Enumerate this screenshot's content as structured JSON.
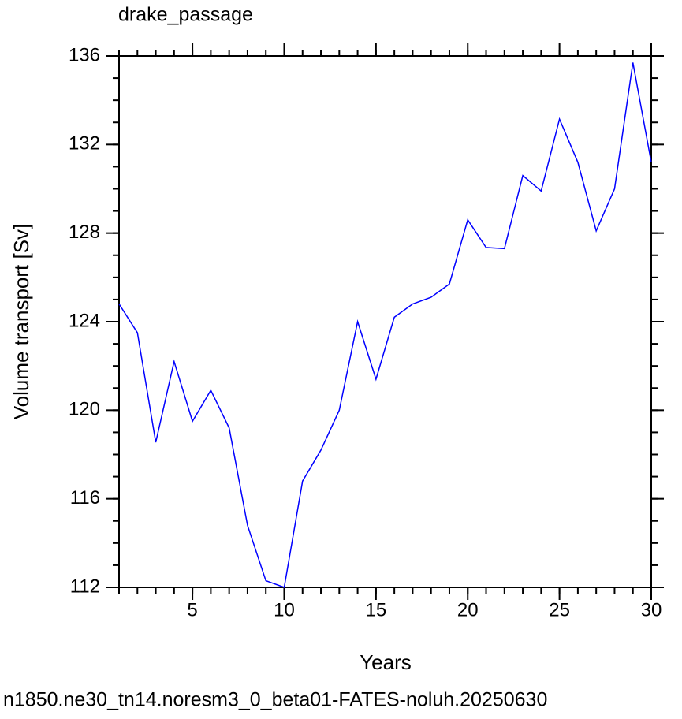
{
  "chart_data": {
    "type": "line",
    "title": "drake_passage",
    "x_label": "Years",
    "y_label": "Volume transport [Sv]",
    "footer": "n1850.ne30_tn14.noresm3_0_beta01-FATES-noluh.20250630",
    "x": [
      1,
      2,
      3,
      4,
      5,
      6,
      7,
      8,
      9,
      10,
      11,
      12,
      13,
      14,
      15,
      16,
      17,
      18,
      19,
      20,
      21,
      22,
      23,
      24,
      25,
      26,
      27,
      28,
      29,
      30
    ],
    "series": [
      {
        "name": "drake_passage",
        "color": "#0000ff",
        "values": [
          124.8,
          123.5,
          118.55,
          122.2,
          119.5,
          120.9,
          119.2,
          114.8,
          112.3,
          112.0,
          116.8,
          118.2,
          120.0,
          124.0,
          121.4,
          124.2,
          124.8,
          125.1,
          125.7,
          128.6,
          127.35,
          127.3,
          130.6,
          129.9,
          133.15,
          131.2,
          128.1,
          130.0,
          135.7,
          131.2
        ]
      }
    ],
    "xlim": [
      1,
      30
    ],
    "xticks": [
      5,
      10,
      15,
      20,
      25,
      30
    ],
    "ylim": [
      112,
      136
    ],
    "yticks": [
      112,
      116,
      120,
      124,
      128,
      132,
      136
    ],
    "footer_color": "#0000ff"
  }
}
